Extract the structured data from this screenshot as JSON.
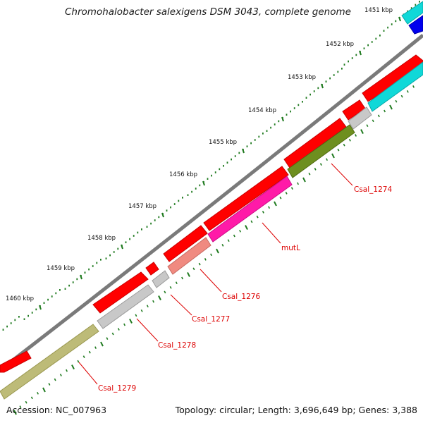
{
  "title": "Chromohalobacter salexigens DSM 3043, complete genome",
  "footer": {
    "accession": "Accession: NC_007963",
    "summary": "Topology: circular; Length: 3,696,649 bp; Genes: 3,388"
  },
  "scale_labels": [
    "1451 kbp",
    "1452 kbp",
    "1453 kbp",
    "1454 kbp",
    "1455 kbp",
    "1456 kbp",
    "1457 kbp",
    "1458 kbp",
    "1459 kbp",
    "1460 kbp"
  ],
  "gene_labels": [
    "Csal_1274",
    "mutL",
    "Csal_1276",
    "Csal_1277",
    "Csal_1278",
    "Csal_1279"
  ],
  "colors": {
    "backbone": "#7a7a7a",
    "cds": "#ff0000",
    "tick": "#1f7a1f",
    "label": "#dd0000",
    "cyan": "#10d8d8",
    "blue": "#0000ee",
    "olive": "#6e8f1f",
    "magenta": "#ff1aa8",
    "salmon": "#f08a80",
    "gray": "#c8c8c8",
    "khaki": "#bdbb78"
  }
}
